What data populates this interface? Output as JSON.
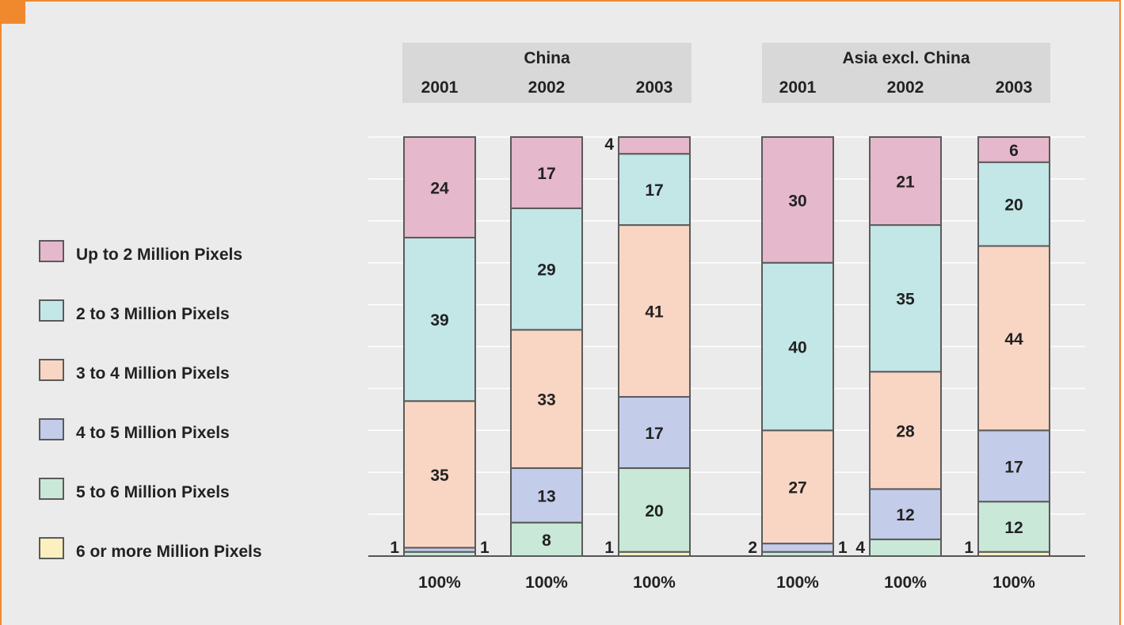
{
  "chart_data": {
    "type": "bar",
    "stacked": true,
    "groups": [
      {
        "name": "China",
        "years": [
          "2001",
          "2002",
          "2003"
        ]
      },
      {
        "name": "Asia excl. China",
        "years": [
          "2001",
          "2002",
          "2003"
        ]
      }
    ],
    "series": [
      {
        "name": "Up to 2 Million Pixels",
        "color": "#e5b8cb",
        "values": [
          24,
          17,
          4,
          30,
          21,
          6
        ]
      },
      {
        "name": "2 to 3 Million Pixels",
        "color": "#c3e6e7",
        "values": [
          39,
          29,
          17,
          40,
          35,
          20
        ]
      },
      {
        "name": "3 to 4 Million Pixels",
        "color": "#f9d6c4",
        "values": [
          35,
          33,
          41,
          27,
          28,
          44
        ]
      },
      {
        "name": "4 to 5 Million Pixels",
        "color": "#c3cce9",
        "values": [
          1,
          13,
          17,
          2,
          12,
          17
        ]
      },
      {
        "name": "5 to 6 Million Pixels",
        "color": "#c9e8d8",
        "values": [
          1,
          8,
          20,
          1,
          4,
          12
        ]
      },
      {
        "name": "6 or more Million Pixels",
        "color": "#fbf0be",
        "values": [
          0,
          0,
          1,
          0,
          0,
          1
        ]
      }
    ],
    "totals": [
      "100%",
      "100%",
      "100%",
      "100%",
      "100%",
      "100%"
    ],
    "ylim": [
      0,
      100
    ],
    "grid": true,
    "legend_position": "left"
  }
}
